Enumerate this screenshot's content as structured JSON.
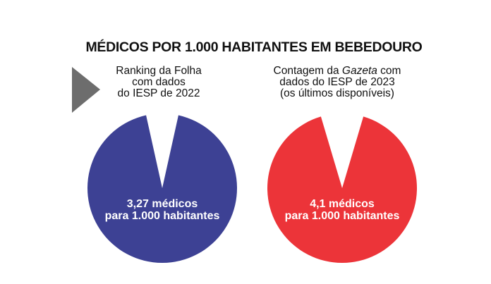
{
  "title": "MÉDICOS POR 1.000 HABITANTES EM BEBEDOURO",
  "arrow_icon": "play-triangle-icon",
  "chart_data": [
    {
      "type": "pie",
      "subtitle_lines": [
        "Ranking da Folha",
        "com dados",
        "do IESP de 2022"
      ],
      "value": 3.27,
      "label_lines": [
        "3,27 médicos",
        "para 1.000 habitantes"
      ],
      "color": "#3D4194"
    },
    {
      "type": "pie",
      "subtitle_lines": [
        "Contagem da ",
        "Gazeta",
        " com",
        "dados do IESP de 2023",
        "(os últimos disponíveis)"
      ],
      "value": 4.1,
      "label_lines": [
        "4,1 médicos",
        "para 1.000 habitantes"
      ],
      "color": "#EC3439"
    }
  ]
}
